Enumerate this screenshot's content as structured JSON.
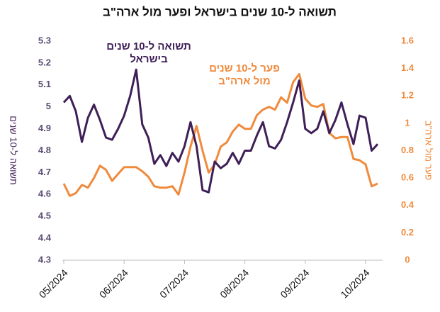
{
  "chart_data": {
    "type": "line",
    "title": "תשואה ל-10 שנים בישראל ופער מול ארה\"ב",
    "y_label": "תשואה ל-10 שנים",
    "y2_label": "פער מול ארה\"ב",
    "categories": [
      "05/2024",
      null,
      null,
      null,
      null,
      null,
      null,
      null,
      null,
      null,
      "06/2024",
      null,
      null,
      null,
      null,
      null,
      null,
      null,
      null,
      null,
      "07/2024",
      null,
      null,
      null,
      null,
      null,
      null,
      null,
      null,
      null,
      "08/2024",
      null,
      null,
      null,
      null,
      null,
      null,
      null,
      null,
      null,
      "09/2024",
      null,
      null,
      null,
      null,
      null,
      null,
      null,
      null,
      null,
      "10/2024",
      null,
      null
    ],
    "series": [
      {
        "name": "תשואה ל-10 שנים בישראל",
        "color": "#3f1f57",
        "axis": "y",
        "values": [
          5.02,
          5.05,
          4.98,
          4.84,
          4.95,
          5.01,
          4.94,
          4.86,
          4.85,
          4.9,
          4.96,
          5.05,
          5.17,
          4.92,
          4.86,
          4.74,
          4.78,
          4.73,
          4.79,
          4.75,
          4.82,
          4.93,
          4.82,
          4.62,
          4.61,
          4.75,
          4.72,
          4.74,
          4.79,
          4.74,
          4.8,
          4.8,
          4.87,
          4.93,
          4.82,
          4.81,
          4.85,
          4.93,
          5.02,
          5.12,
          4.9,
          4.88,
          4.9,
          4.98,
          4.88,
          4.94,
          5.02,
          4.92,
          4.83,
          4.96,
          4.95,
          4.8,
          4.83
        ]
      },
      {
        "name": "פער ל-10 שנים מול ארה\"ב",
        "color": "#f08a3c",
        "axis": "y2",
        "values": [
          0.56,
          0.47,
          0.49,
          0.55,
          0.53,
          0.6,
          0.69,
          0.66,
          0.58,
          0.63,
          0.68,
          0.68,
          0.68,
          0.65,
          0.61,
          0.54,
          0.53,
          0.53,
          0.54,
          0.48,
          0.64,
          0.83,
          0.98,
          0.8,
          0.64,
          0.7,
          0.83,
          0.86,
          0.94,
          0.99,
          0.96,
          0.96,
          1.06,
          1.1,
          1.12,
          1.1,
          1.19,
          1.15,
          1.3,
          1.36,
          1.18,
          1.13,
          1.12,
          1.14,
          0.93,
          0.89,
          0.9,
          0.9,
          0.74,
          0.73,
          0.7,
          0.54,
          0.56
        ]
      }
    ],
    "annotations": [
      {
        "lines": [
          "תשואה ל-10 שנים",
          "בישראל"
        ],
        "color": "#3f1f57"
      },
      {
        "lines": [
          "פער ל-10 שנים",
          "מול ארה\"ב"
        ],
        "color": "#f08a3c"
      }
    ],
    "ylim": [
      4.3,
      5.3
    ],
    "yticks": [
      5.3,
      5.2,
      5.1,
      5,
      4.9,
      4.8,
      4.7,
      4.6,
      4.5,
      4.4,
      4.3
    ],
    "y2lim": [
      0,
      1.6
    ],
    "y2ticks": [
      1.6,
      1.4,
      1.2,
      1,
      0.8,
      0.6,
      0.4,
      0.2,
      0
    ],
    "ytick_color": "#5d4e75",
    "y2tick_color": "#f08a3c",
    "grid": false
  }
}
